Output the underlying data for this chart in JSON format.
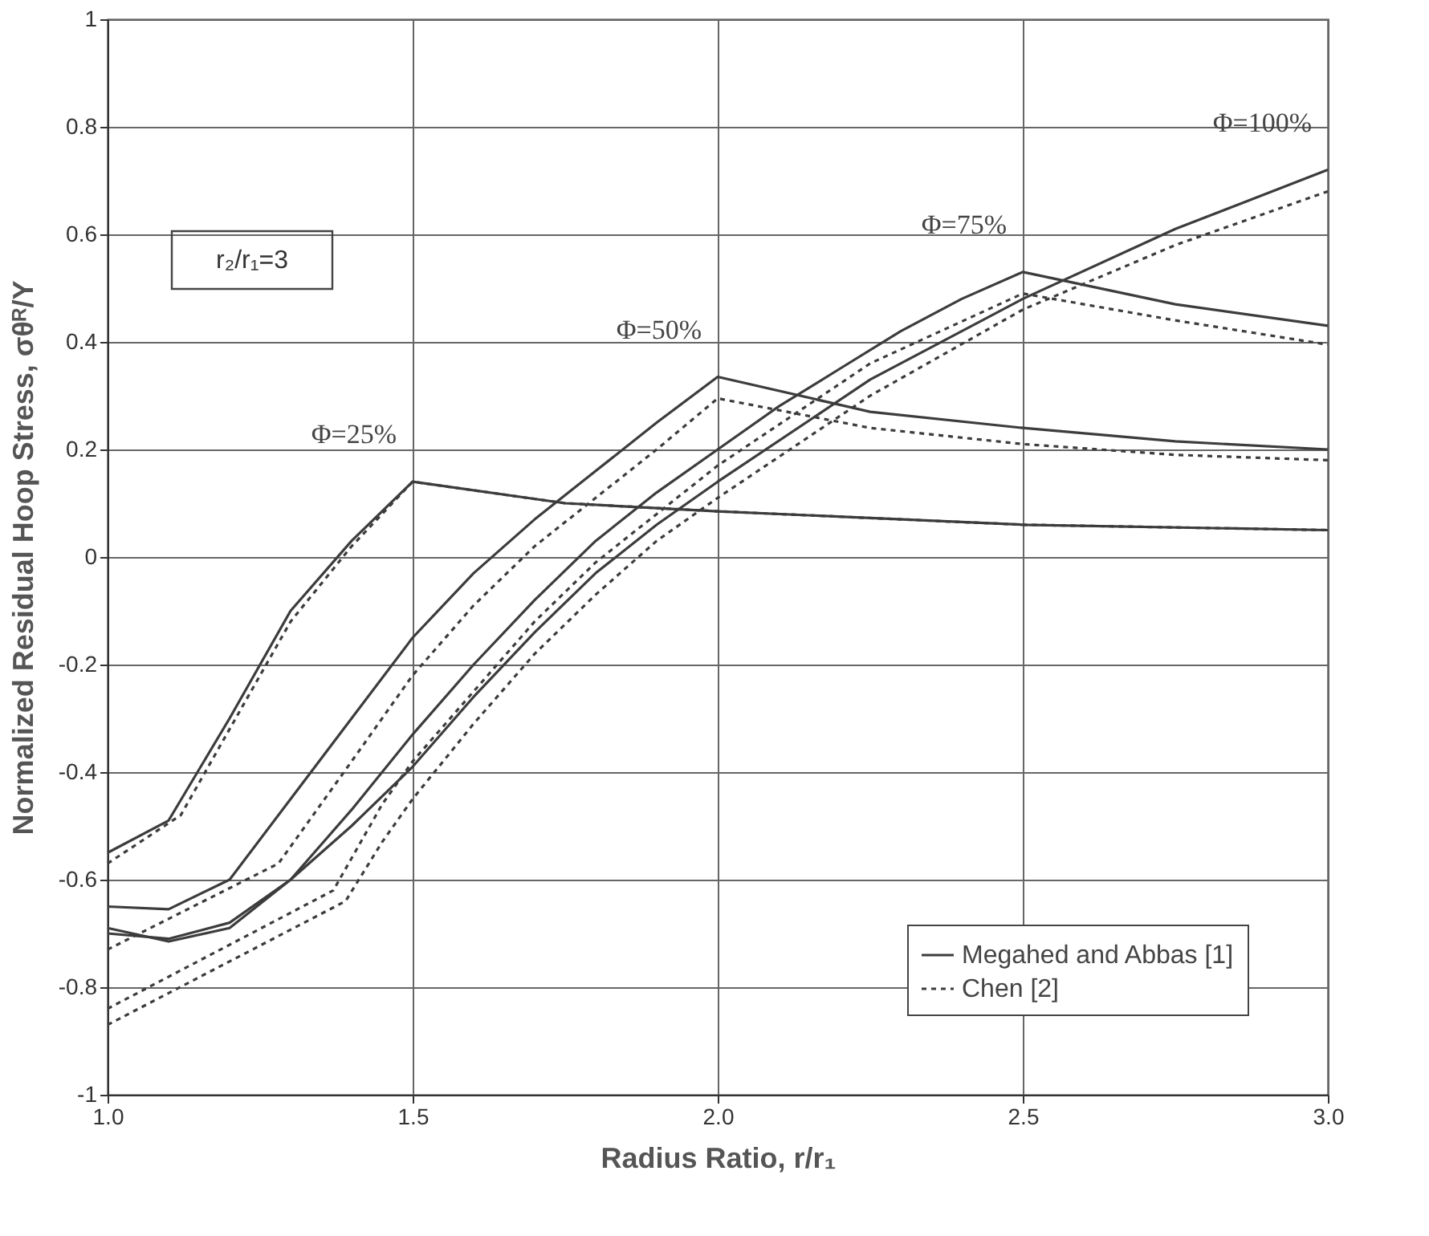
{
  "chart_data": {
    "type": "line",
    "xlabel": "Radius Ratio, r/r₁",
    "ylabel": "Normalized Residual Hoop Stress, σθᴿ/Y",
    "xlim": [
      1,
      3
    ],
    "xticks": [
      {
        "value": 1,
        "label": "1.0"
      },
      {
        "value": 1.5,
        "label": "1.5"
      },
      {
        "value": 2,
        "label": "2.0"
      },
      {
        "value": 2.5,
        "label": "2.5"
      },
      {
        "value": 3,
        "label": "3.0"
      }
    ],
    "ylim": [
      -1,
      1
    ],
    "yticks": [
      -1,
      -0.8,
      -0.6,
      -0.4,
      -0.2,
      0,
      0.2,
      0.4,
      0.6,
      0.8,
      1
    ],
    "grid": true,
    "legend": "bottom right",
    "marker": "none",
    "series": [
      {
        "name": "Megahed and Abbas [1]",
        "color": "#3c3c3c",
        "line_style": "solid",
        "x": [
          1.0,
          1.1,
          1.2,
          1.3,
          1.4,
          1.5,
          1.75,
          2.0,
          2.5,
          3.0
        ],
        "values": [
          -0.55,
          -0.49,
          -0.3,
          -0.1,
          0.03,
          0.14,
          0.1,
          0.085,
          0.06,
          0.05
        ]
      },
      {
        "name": "Chen [2]",
        "color": "#3c3c3c",
        "line_style": "dotted",
        "x": [
          1.0,
          1.12,
          1.2,
          1.3,
          1.4,
          1.5,
          1.75,
          2.0,
          2.5,
          3.0
        ],
        "values": [
          -0.57,
          -0.48,
          -0.32,
          -0.12,
          0.02,
          0.14,
          0.1,
          0.085,
          0.06,
          0.05
        ]
      },
      {
        "color": "#3c3c3c",
        "line_style": "solid",
        "x": [
          1.0,
          1.1,
          1.2,
          1.3,
          1.4,
          1.5,
          1.6,
          1.7,
          1.8,
          1.9,
          2.0,
          2.25,
          2.5,
          2.75,
          3.0
        ],
        "values": [
          -0.65,
          -0.655,
          -0.6,
          -0.45,
          -0.3,
          -0.15,
          -0.03,
          0.07,
          0.16,
          0.25,
          0.335,
          0.27,
          0.24,
          0.215,
          0.2
        ]
      },
      {
        "color": "#3c3c3c",
        "line_style": "dotted",
        "x": [
          1.0,
          1.28,
          1.4,
          1.5,
          1.6,
          1.7,
          1.8,
          1.9,
          2.0,
          2.25,
          2.5,
          2.75,
          3.0
        ],
        "values": [
          -0.73,
          -0.57,
          -0.38,
          -0.22,
          -0.09,
          0.02,
          0.11,
          0.2,
          0.295,
          0.24,
          0.21,
          0.19,
          0.18
        ]
      },
      {
        "color": "#3c3c3c",
        "line_style": "solid",
        "x": [
          1.0,
          1.1,
          1.2,
          1.3,
          1.4,
          1.5,
          1.6,
          1.7,
          1.8,
          1.9,
          2.0,
          2.1,
          2.2,
          2.3,
          2.4,
          2.5,
          2.75,
          3.0
        ],
        "values": [
          -0.69,
          -0.715,
          -0.69,
          -0.6,
          -0.47,
          -0.33,
          -0.2,
          -0.08,
          0.03,
          0.12,
          0.2,
          0.28,
          0.35,
          0.42,
          0.48,
          0.53,
          0.47,
          0.43
        ]
      },
      {
        "color": "#3c3c3c",
        "line_style": "dotted",
        "x": [
          1.0,
          1.37,
          1.45,
          1.5,
          1.6,
          1.7,
          1.8,
          1.9,
          2.0,
          2.25,
          2.5,
          2.75,
          3.0
        ],
        "values": [
          -0.84,
          -0.62,
          -0.46,
          -0.38,
          -0.25,
          -0.12,
          -0.01,
          0.08,
          0.17,
          0.36,
          0.49,
          0.44,
          0.395
        ]
      },
      {
        "color": "#3c3c3c",
        "line_style": "solid",
        "x": [
          1.0,
          1.1,
          1.2,
          1.3,
          1.4,
          1.5,
          1.6,
          1.7,
          1.8,
          1.9,
          2.0,
          2.25,
          2.5,
          2.75,
          3.0
        ],
        "values": [
          -0.7,
          -0.71,
          -0.68,
          -0.6,
          -0.5,
          -0.39,
          -0.26,
          -0.14,
          -0.03,
          0.06,
          0.14,
          0.33,
          0.48,
          0.61,
          0.72
        ]
      },
      {
        "color": "#3c3c3c",
        "line_style": "dotted",
        "x": [
          1.0,
          1.39,
          1.45,
          1.5,
          1.6,
          1.7,
          1.8,
          1.9,
          2.0,
          2.25,
          2.5,
          2.75,
          3.0
        ],
        "values": [
          -0.87,
          -0.64,
          -0.53,
          -0.45,
          -0.31,
          -0.18,
          -0.07,
          0.03,
          0.11,
          0.3,
          0.46,
          0.58,
          0.68
        ]
      }
    ],
    "annotations": [
      {
        "text": "Φ=25%",
        "x": 1.5,
        "y": 0.14
      },
      {
        "text": "Φ=50%",
        "x": 2.0,
        "y": 0.335
      },
      {
        "text": "Φ=75%",
        "x": 2.5,
        "y": 0.53
      },
      {
        "text": "Φ=100%",
        "x": 3.0,
        "y": 0.72
      },
      "r₂/r₁=3"
    ]
  }
}
